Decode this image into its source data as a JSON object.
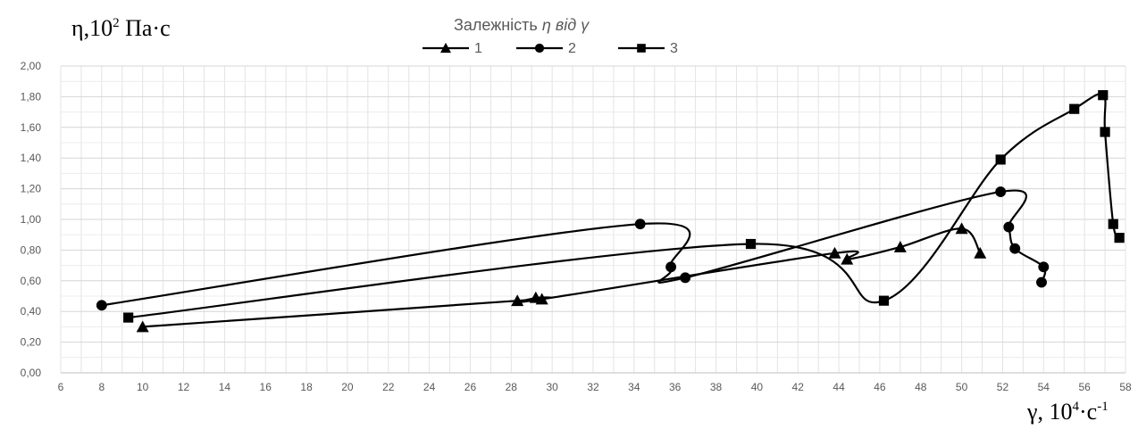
{
  "chart_data": {
    "type": "line",
    "title": "Залежність",
    "title_symbols": [
      "η",
      "від",
      "γ"
    ],
    "ylabel": "η,10",
    "ylabel_exponent": "2",
    "ylabel_unit": " Па·с",
    "xlabel": "γ, 10",
    "xlabel_exponent": "4",
    "xlabel_unit": "·с",
    "xlabel_unit_exponent": "-1",
    "xlim": [
      6,
      58
    ],
    "ylim": [
      0,
      2
    ],
    "x_ticks": [
      "6",
      "8",
      "10",
      "12",
      "14",
      "16",
      "18",
      "20",
      "22",
      "24",
      "26",
      "28",
      "30",
      "32",
      "34",
      "36",
      "38",
      "40",
      "42",
      "44",
      "46",
      "48",
      "50",
      "52",
      "54",
      "56",
      "58"
    ],
    "y_ticks": [
      "0,00",
      "0,20",
      "0,40",
      "0,60",
      "0,80",
      "1,00",
      "1,20",
      "1,40",
      "1,60",
      "1,80",
      "2,00"
    ],
    "grid": true,
    "legend_position": "top-center",
    "series": [
      {
        "name": "1",
        "marker": "triangle",
        "color": "#000000",
        "points": [
          [
            10,
            0.3
          ],
          [
            28.3,
            0.47
          ],
          [
            29.2,
            0.49
          ],
          [
            29.5,
            0.48
          ],
          [
            43.8,
            0.78
          ],
          [
            44.4,
            0.74
          ],
          [
            47,
            0.82
          ],
          [
            50,
            0.94
          ],
          [
            50.9,
            0.78
          ]
        ]
      },
      {
        "name": "2",
        "marker": "circle",
        "color": "#000000",
        "points": [
          [
            8,
            0.44
          ],
          [
            34.3,
            0.97
          ],
          [
            35.8,
            0.69
          ],
          [
            36.5,
            0.62
          ],
          [
            51.9,
            1.18
          ],
          [
            52.3,
            0.95
          ],
          [
            52.6,
            0.81
          ],
          [
            54,
            0.69
          ],
          [
            53.9,
            0.59
          ]
        ]
      },
      {
        "name": "3",
        "marker": "square",
        "color": "#000000",
        "points": [
          [
            9.3,
            0.36
          ],
          [
            39.7,
            0.84
          ],
          [
            46.2,
            0.47
          ],
          [
            51.9,
            1.39
          ],
          [
            55.5,
            1.72
          ],
          [
            56.9,
            1.81
          ],
          [
            57,
            1.57
          ],
          [
            57.4,
            0.97
          ],
          [
            57.7,
            0.88
          ]
        ]
      }
    ]
  }
}
